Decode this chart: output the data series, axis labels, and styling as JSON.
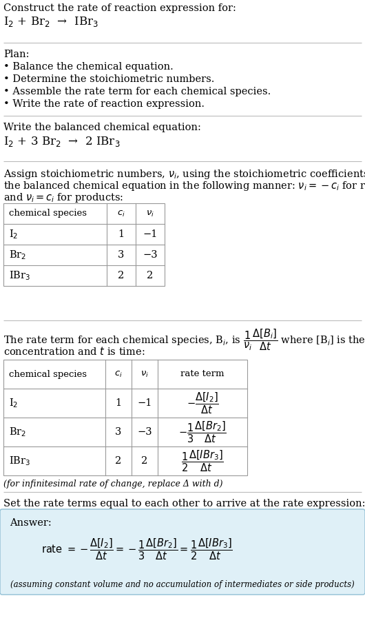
{
  "bg_color": "#ffffff",
  "text_color": "#000000",
  "answer_bg": "#dff0f7",
  "answer_border": "#90bfd4",
  "section1_title": "Construct the rate of reaction expression for:",
  "section1_reaction": "I$_2$ + Br$_2$  →  IBr$_3$",
  "section2_title": "Plan:",
  "section2_bullets": [
    "• Balance the chemical equation.",
    "• Determine the stoichiometric numbers.",
    "• Assemble the rate term for each chemical species.",
    "• Write the rate of reaction expression."
  ],
  "section3_title": "Write the balanced chemical equation:",
  "section3_equation": "I$_2$ + 3 Br$_2$  →  2 IBr$_3$",
  "section4_intro_line1": "Assign stoichiometric numbers, $\\nu_i$, using the stoichiometric coefficients, $c_i$, from",
  "section4_intro_line2": "the balanced chemical equation in the following manner: $\\nu_i = -c_i$ for reactants",
  "section4_intro_line3": "and $\\nu_i = c_i$ for products:",
  "table1_headers": [
    "chemical species",
    "$c_i$",
    "$\\nu_i$"
  ],
  "table1_rows": [
    [
      "I$_2$",
      "1",
      "−1"
    ],
    [
      "Br$_2$",
      "3",
      "−3"
    ],
    [
      "IBr$_3$",
      "2",
      "2"
    ]
  ],
  "section5_line1": "The rate term for each chemical species, B$_i$, is $\\dfrac{1}{\\nu_i}\\dfrac{\\Delta[B_i]}{\\Delta t}$ where [B$_i$] is the amount",
  "section5_line2": "concentration and $t$ is time:",
  "table2_headers": [
    "chemical species",
    "$c_i$",
    "$\\nu_i$",
    "rate term"
  ],
  "table2_rows": [
    [
      "I$_2$",
      "1",
      "−1",
      "$-\\dfrac{\\Delta[I_2]}{\\Delta t}$"
    ],
    [
      "Br$_2$",
      "3",
      "−3",
      "$-\\dfrac{1}{3}\\dfrac{\\Delta[Br_2]}{\\Delta t}$"
    ],
    [
      "IBr$_3$",
      "2",
      "2",
      "$\\dfrac{1}{2}\\dfrac{\\Delta[IBr_3]}{\\Delta t}$"
    ]
  ],
  "section5_note": "(for infinitesimal rate of change, replace Δ with d)",
  "section6_intro": "Set the rate terms equal to each other to arrive at the rate expression:",
  "answer_label": "Answer:",
  "answer_equation": "rate $= -\\dfrac{\\Delta[I_2]}{\\Delta t} = -\\dfrac{1}{3}\\dfrac{\\Delta[Br_2]}{\\Delta t} = \\dfrac{1}{2}\\dfrac{\\Delta[IBr_3]}{\\Delta t}$",
  "answer_note": "(assuming constant volume and no accumulation of intermediates or side products)"
}
